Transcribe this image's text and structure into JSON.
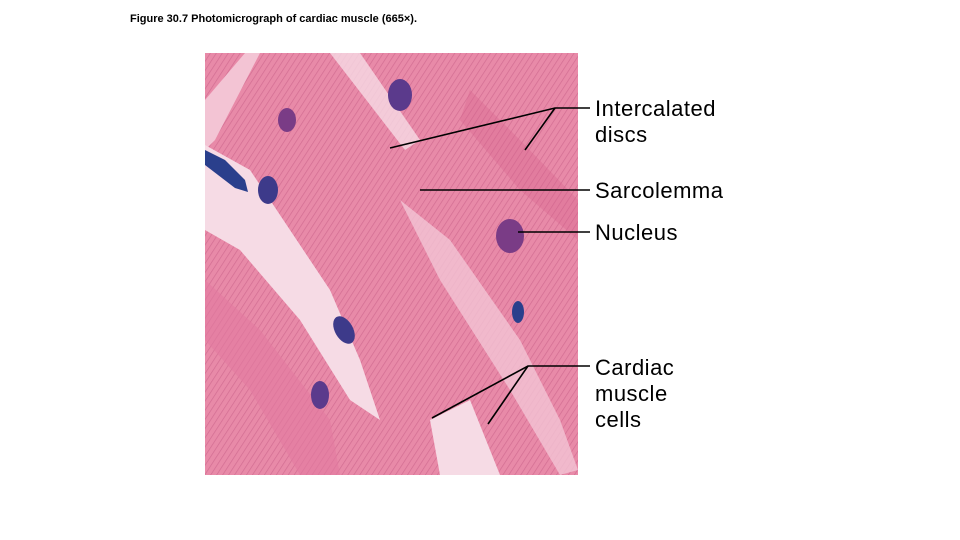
{
  "figure": {
    "caption": "Figure 30.7  Photomicrograph of cardiac muscle (665×).",
    "labels": [
      {
        "lines": [
          "Intercalated",
          "discs"
        ]
      },
      {
        "lines": [
          "Sarcolemma"
        ]
      },
      {
        "lines": [
          "Nucleus"
        ]
      },
      {
        "lines": [
          "Cardiac",
          "muscle",
          "cells"
        ]
      }
    ]
  }
}
